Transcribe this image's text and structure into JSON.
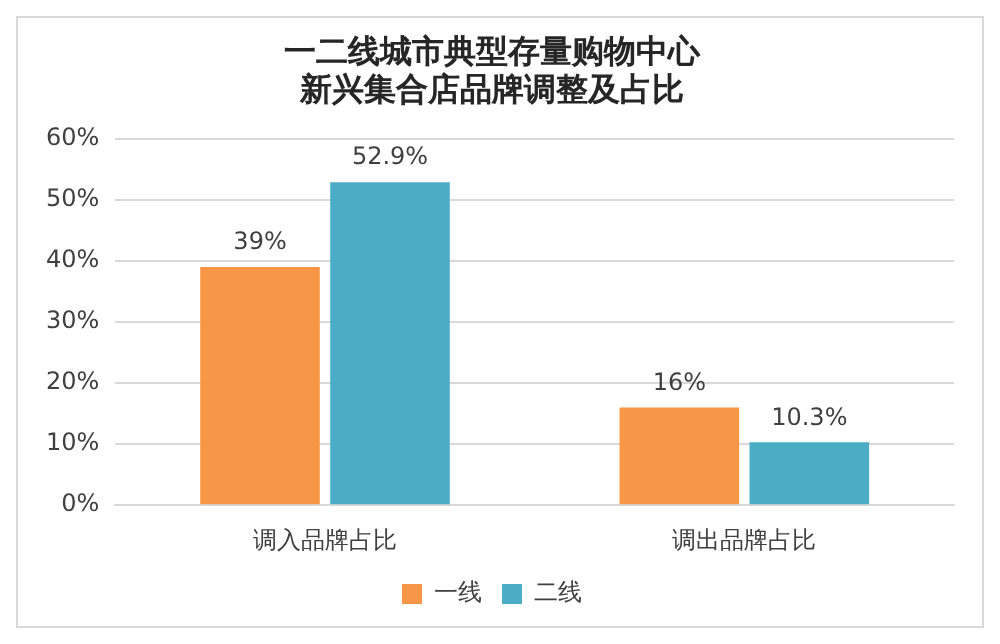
{
  "chart_data": {
    "type": "bar",
    "title": "一二线城市典型存量购物中心新兴集合店品牌调整及占比",
    "categories": [
      "调入品牌占比",
      "调出品牌占比"
    ],
    "series": [
      {
        "name": "一线",
        "color": "#f79646",
        "values": [
          39,
          16
        ],
        "value_labels": [
          "39%",
          "16%"
        ]
      },
      {
        "name": "二线",
        "color": "#4bacc6",
        "values": [
          52.9,
          10.3
        ],
        "value_labels": [
          "52.9%",
          "10.3%"
        ]
      }
    ],
    "ylim": [
      0,
      60
    ],
    "yticks": [
      {
        "value": 0,
        "label": "0%"
      },
      {
        "value": 10,
        "label": "10%"
      },
      {
        "value": 20,
        "label": "20%"
      },
      {
        "value": 30,
        "label": "30%"
      },
      {
        "value": 40,
        "label": "40%"
      },
      {
        "value": 50,
        "label": "50%"
      },
      {
        "value": 60,
        "label": "60%"
      }
    ],
    "grid": "y",
    "legend": "bottom"
  }
}
